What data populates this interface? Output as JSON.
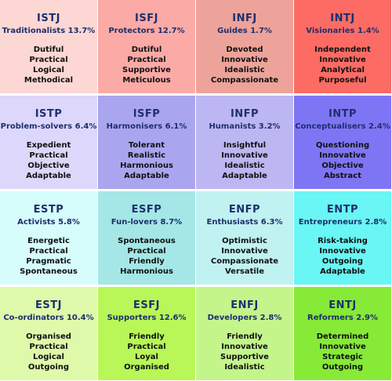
{
  "cells": [
    {
      "code": "ISTJ",
      "title": "Traditionalists 13.7%",
      "traits": [
        "Dutiful",
        "Practical",
        "Logical",
        "Methodical"
      ],
      "color": "#fcd7d4"
    },
    {
      "code": "ISFJ",
      "title": "Protectors 12.7%",
      "traits": [
        "Dutiful",
        "Practical",
        "Supportive",
        "Meticulous"
      ],
      "color": "#fbaaa6"
    },
    {
      "code": "INFJ",
      "title": "Guides 1.7%",
      "traits": [
        "Devoted",
        "Innovative",
        "Idealistic",
        "Compassionate"
      ],
      "color": "#eda39a"
    },
    {
      "code": "INTJ",
      "title": "Visionaries 1.4%",
      "traits": [
        "Independent",
        "Innovative",
        "Analytical",
        "Purposeful"
      ],
      "color": "#fc6b64"
    },
    {
      "code": "ISTP",
      "title": "Problem-solvers 6.4%",
      "traits": [
        "Expedient",
        "Practical",
        "Objective",
        "Adaptable"
      ],
      "color": "#dcd7fb"
    },
    {
      "code": "ISFP",
      "title": "Harmonisers 6.1%",
      "traits": [
        "Tolerant",
        "Realistic",
        "Harmonious",
        "Adaptable"
      ],
      "color": "#aaa5ef"
    },
    {
      "code": "INFP",
      "title": "Humanists 3.2%",
      "traits": [
        "Insightful",
        "Innovative",
        "Idealistic",
        "Adaptable"
      ],
      "color": "#bcb6f2"
    },
    {
      "code": "INTP",
      "title": "Conceptualisers 2.4%",
      "traits": [
        "Questioning",
        "Innovative",
        "Objective",
        "Abstract"
      ],
      "color": "#7e75f4"
    },
    {
      "code": "ESTP",
      "title": "Activists 5.8%",
      "traits": [
        "Energetic",
        "Practical",
        "Pragmatic",
        "Spontaneous"
      ],
      "color": "#d6fcfc"
    },
    {
      "code": "ESFP",
      "title": "Fun-lovers 8.7%",
      "traits": [
        "Spontaneous",
        "Practical",
        "Friendly",
        "Harmonious"
      ],
      "color": "#a4e7e6"
    },
    {
      "code": "ENFP",
      "title": "Enthusiasts 6.3%",
      "traits": [
        "Optimistic",
        "Innovative",
        "Compassionate",
        "Versatile"
      ],
      "color": "#c0f2f1"
    },
    {
      "code": "ENTP",
      "title": "Entrepreneurs 2.8%",
      "traits": [
        "Risk-taking",
        "Innovative",
        "Outgoing",
        "Adaptable"
      ],
      "color": "#69f6f4"
    },
    {
      "code": "ESTJ",
      "title": "Co-ordinators 10.4%",
      "traits": [
        "Organised",
        "Practical",
        "Logical",
        "Outgoing"
      ],
      "color": "#def9aa"
    },
    {
      "code": "ESFJ",
      "title": "Supporters 12.6%",
      "traits": [
        "Friendly",
        "Practical",
        "Loyal",
        "Organised"
      ],
      "color": "#b8f757"
    },
    {
      "code": "ENFJ",
      "title": "Developers 2.8%",
      "traits": [
        "Friendly",
        "Innovative",
        "Supportive",
        "Idealistic"
      ],
      "color": "#c4f58b"
    },
    {
      "code": "ENTJ",
      "title": "Reformers 2.9%",
      "traits": [
        "Determined",
        "Innovative",
        "Strategic",
        "Outgoing"
      ],
      "color": "#86ea37"
    }
  ]
}
